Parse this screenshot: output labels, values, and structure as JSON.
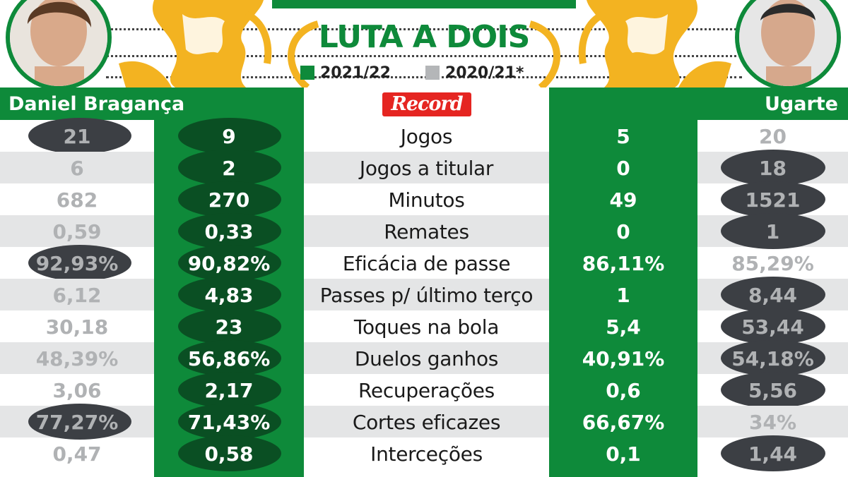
{
  "title": "LUTA A DOIS",
  "legend": [
    {
      "label": "2021/22",
      "color": "#0e8a3a"
    },
    {
      "label": "2020/21*",
      "color": "#b4b6b8"
    }
  ],
  "brand": "Record",
  "players": {
    "left": {
      "name": "Daniel Bragança"
    },
    "right": {
      "name": "Ugarte"
    }
  },
  "colors": {
    "green": "#0e8a3a",
    "dark_green": "#0a4f23",
    "oval_dark": "#3c3f44",
    "grey_text": "#b0b2b4",
    "record_red": "#e52521",
    "lion_gold": "#f3b321"
  },
  "stats": [
    {
      "label": "Jogos",
      "left_prev": "21",
      "left_curr": "9",
      "right_curr": "5",
      "right_prev": "20",
      "left_prev_hl": true,
      "right_prev_hl": false
    },
    {
      "label": "Jogos a titular",
      "left_prev": "6",
      "left_curr": "2",
      "right_curr": "0",
      "right_prev": "18",
      "left_prev_hl": false,
      "right_prev_hl": true
    },
    {
      "label": "Minutos",
      "left_prev": "682",
      "left_curr": "270",
      "right_curr": "49",
      "right_prev": "1521",
      "left_prev_hl": false,
      "right_prev_hl": true
    },
    {
      "label": "Remates",
      "left_prev": "0,59",
      "left_curr": "0,33",
      "right_curr": "0",
      "right_prev": "1",
      "left_prev_hl": false,
      "right_prev_hl": true
    },
    {
      "label": "Eficácia de passe",
      "left_prev": "92,93%",
      "left_curr": "90,82%",
      "right_curr": "86,11%",
      "right_prev": "85,29%",
      "left_prev_hl": true,
      "right_prev_hl": false
    },
    {
      "label": "Passes p/ último terço",
      "left_prev": "6,12",
      "left_curr": "4,83",
      "right_curr": "1",
      "right_prev": "8,44",
      "left_prev_hl": false,
      "right_prev_hl": true
    },
    {
      "label": "Toques na bola",
      "left_prev": "30,18",
      "left_curr": "23",
      "right_curr": "5,4",
      "right_prev": "53,44",
      "left_prev_hl": false,
      "right_prev_hl": true
    },
    {
      "label": "Duelos ganhos",
      "left_prev": "48,39%",
      "left_curr": "56,86%",
      "right_curr": "40,91%",
      "right_prev": "54,18%",
      "left_prev_hl": false,
      "right_prev_hl": true
    },
    {
      "label": "Recuperações",
      "left_prev": "3,06",
      "left_curr": "2,17",
      "right_curr": "0,6",
      "right_prev": "5,56",
      "left_prev_hl": false,
      "right_prev_hl": true
    },
    {
      "label": "Cortes eficazes",
      "left_prev": "77,27%",
      "left_curr": "71,43%",
      "right_curr": "66,67%",
      "right_prev": "34%",
      "left_prev_hl": true,
      "right_prev_hl": false
    },
    {
      "label": "Interceções",
      "left_prev": "0,47",
      "left_curr": "0,58",
      "right_curr": "0,1",
      "right_prev": "1,44",
      "left_prev_hl": false,
      "right_prev_hl": true
    }
  ]
}
